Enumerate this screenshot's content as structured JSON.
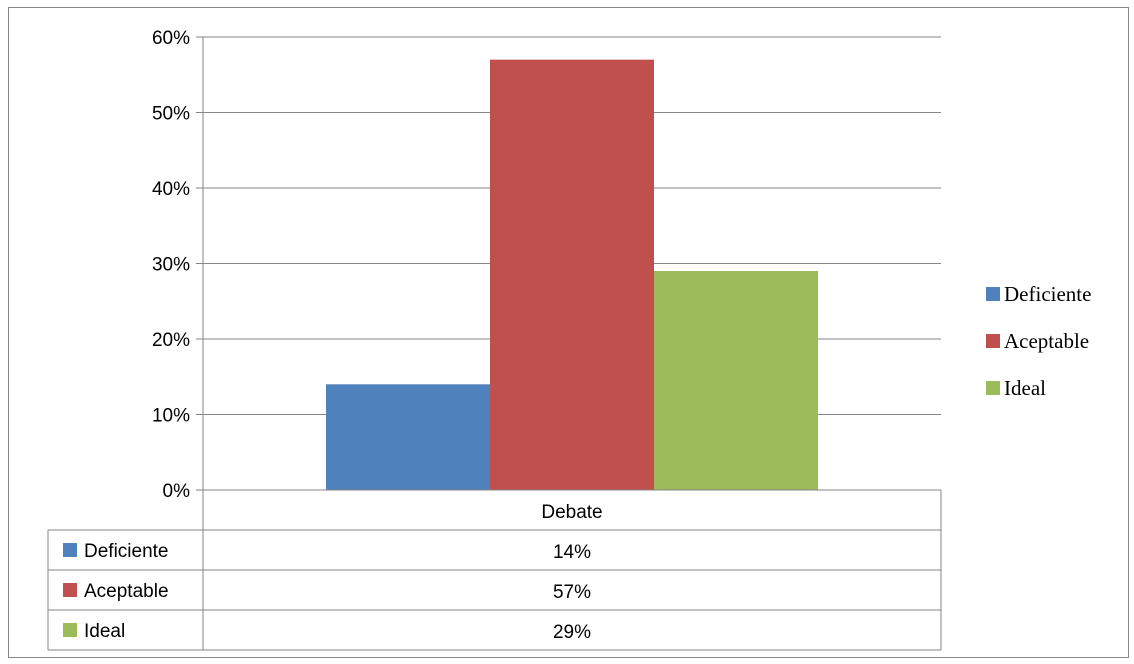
{
  "chart_data": {
    "type": "bar",
    "categories": [
      "Debate"
    ],
    "series": [
      {
        "name": "Deficiente",
        "values": [
          14
        ],
        "label": "14%",
        "color": "#4F81BD"
      },
      {
        "name": "Aceptable",
        "values": [
          57
        ],
        "label": "57%",
        "color": "#C0504D"
      },
      {
        "name": "Ideal",
        "values": [
          29
        ],
        "label": "29%",
        "color": "#9BBB59"
      }
    ],
    "ylim": [
      0,
      60
    ],
    "yticks": [
      0,
      10,
      20,
      30,
      40,
      50,
      60
    ],
    "ytick_labels": [
      "0%",
      "10%",
      "20%",
      "30%",
      "40%",
      "50%",
      "60%"
    ],
    "grid": true,
    "legend": "right",
    "data_table": true
  }
}
